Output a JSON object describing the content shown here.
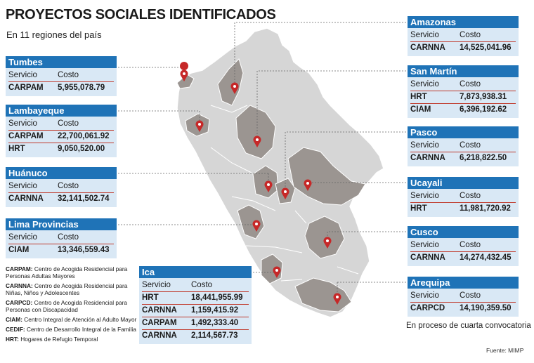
{
  "header": {
    "title": "PROYECTOS SOCIALES IDENTIFICADOS",
    "subtitle": "En 11 regiones del país"
  },
  "columns": {
    "service": "Servicio",
    "cost": "Costo"
  },
  "regions": {
    "tumbes": {
      "name": "Tumbes",
      "rows": [
        {
          "service": "CARPAM",
          "cost": "5,955,078.79"
        }
      ]
    },
    "lambayeque": {
      "name": "Lambayeque",
      "rows": [
        {
          "service": "CARPAM",
          "cost": "22,700,061.92"
        },
        {
          "service": "HRT",
          "cost": "9,050,520.00"
        }
      ]
    },
    "huanuco": {
      "name": "Huánuco",
      "rows": [
        {
          "service": "CARNNA",
          "cost": "32,141,502.74"
        }
      ]
    },
    "lima": {
      "name": "Lima Provincias",
      "rows": [
        {
          "service": "CIAM",
          "cost": "13,346,559.43"
        }
      ]
    },
    "ica": {
      "name": "Ica",
      "rows": [
        {
          "service": "HRT",
          "cost": "18,441,955.99"
        },
        {
          "service": "CARNNA",
          "cost": "1,159,415.92"
        },
        {
          "service": "CARPAM",
          "cost": "1,492,333.40"
        },
        {
          "service": "CARNNA",
          "cost": "2,114,567.73"
        }
      ]
    },
    "amazonas": {
      "name": "Amazonas",
      "rows": [
        {
          "service": "CARNNA",
          "cost": "14,525,041.96"
        }
      ]
    },
    "sanmartin": {
      "name": "San Martín",
      "rows": [
        {
          "service": "HRT",
          "cost": "7,873,938.31"
        },
        {
          "service": "CIAM",
          "cost": "6,396,192.62"
        }
      ]
    },
    "pasco": {
      "name": "Pasco",
      "rows": [
        {
          "service": "CARNNA",
          "cost": "6,218,822.50"
        }
      ]
    },
    "ucayali": {
      "name": "Ucayali",
      "rows": [
        {
          "service": "HRT",
          "cost": "11,981,720.92"
        }
      ]
    },
    "cusco": {
      "name": "Cusco",
      "rows": [
        {
          "service": "CARNNA",
          "cost": "14,274,432.45"
        }
      ]
    },
    "arequipa": {
      "name": "Arequipa",
      "rows": [
        {
          "service": "CARPCD",
          "cost": "14,190,359.50"
        }
      ]
    }
  },
  "legend": [
    {
      "code": "CARPAM:",
      "desc": "Centro de Acogida Residencial para Personas Adultas Mayores"
    },
    {
      "code": "CARNNA:",
      "desc": "Centro de Acogida Residencial para Niñas, Niños y Adolescentes"
    },
    {
      "code": "CARPCD:",
      "desc": "Centro de Acogida Residencial para Personas con Discapacidad"
    },
    {
      "code": "CIAM:",
      "desc": "Centro Integral de Atención al Adulto Mayor"
    },
    {
      "code": "CEDIF:",
      "desc": "Centro de Desarrollo Integral de la Familia"
    },
    {
      "code": "HRT:",
      "desc": "Hogares de Refugio Temporal"
    }
  ],
  "note": "En proceso de cuarta convocatoria",
  "source": "Fuente: MIMP",
  "colors": {
    "header_blue": "#1f73b7",
    "table_bg": "#d9e8f5",
    "highlight_region": "#9b9591",
    "base_region": "#d6d6d6",
    "pin_red": "#c62828"
  }
}
